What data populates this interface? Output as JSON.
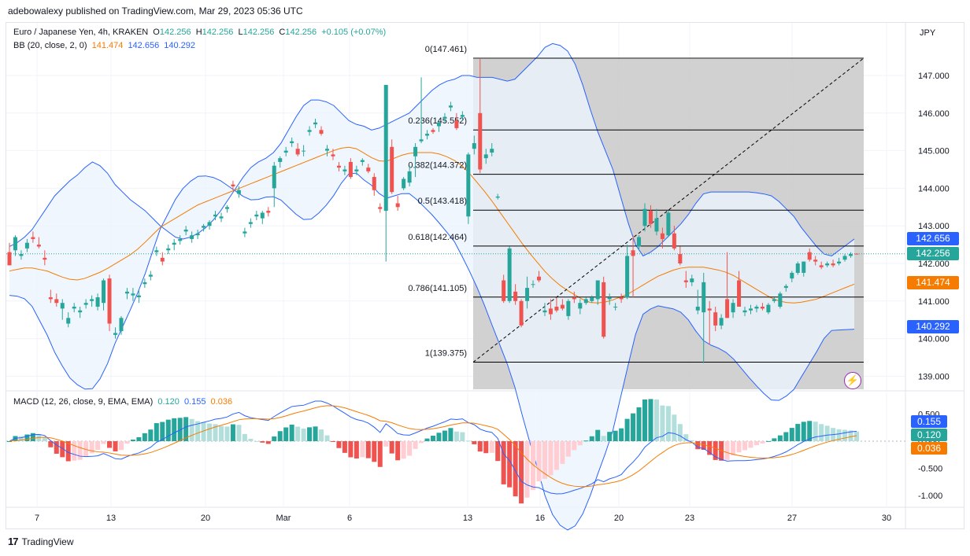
{
  "header": {
    "publisher": "adebowalexy published on TradingView.com, Mar 29, 2023 05:36 UTC"
  },
  "legend": {
    "symbol": "Euro / Japanese Yen, 4h, KRAKEN",
    "o_label": "O",
    "o_value": "142.256",
    "h_label": "H",
    "h_value": "142.256",
    "l_label": "L",
    "l_value": "142.256",
    "c_label": "C",
    "c_value": "142.256",
    "change": "+0.105 (+0.07%)",
    "bb_label": "BB (20, close, 2, 0)",
    "bb_basis": "141.474",
    "bb_upper": "142.656",
    "bb_lower": "140.292",
    "macd_label": "MACD (12, 26, close, 9, EMA, EMA)",
    "macd_hist": "0.120",
    "macd_line": "0.155",
    "macd_signal": "0.036"
  },
  "price_labels": {
    "bb_upper": "142.656",
    "last": "142.256",
    "bb_basis": "141.474",
    "bb_lower": "140.292"
  },
  "macd_labels": {
    "macd": "0.155",
    "hist": "0.120",
    "signal": "0.036"
  },
  "footer": {
    "brand": "TradingView"
  },
  "colors": {
    "up": "#26a69a",
    "down": "#ef5350",
    "bb": "#2962ff",
    "basis": "#f57c00",
    "fib_zone": "#c9c9c9",
    "band_fill": "#ecf4fd"
  },
  "chart_data": {
    "type": "candlestick",
    "title": "Euro / Japanese Yen, 4h, KRAKEN",
    "currency": "JPY",
    "price_axis": {
      "min": 139.0,
      "max": 147.5,
      "ticks": [
        "147.000",
        "146.000",
        "145.000",
        "144.000",
        "143.000",
        "142.000",
        "141.000",
        "140.000",
        "139.000"
      ]
    },
    "x_ticks": [
      "7",
      "13",
      "20",
      "Mar",
      "6",
      "13",
      "16",
      "20",
      "23",
      "27",
      "30"
    ],
    "fibonacci": [
      {
        "label": "0(147.461)",
        "price": 147.461
      },
      {
        "label": "0.236(145.552)",
        "price": 145.552
      },
      {
        "label": "0.382(144.372)",
        "price": 144.372
      },
      {
        "label": "0.5(143.418)",
        "price": 143.418
      },
      {
        "label": "0.618(142.464)",
        "price": 142.464
      },
      {
        "label": "0.786(141.105)",
        "price": 141.105
      },
      {
        "label": "1(139.375)",
        "price": 139.375
      }
    ],
    "candles": [
      [
        142.3,
        142.55,
        141.95,
        141.95
      ],
      [
        142.35,
        142.75,
        142.2,
        142.7
      ],
      [
        142.2,
        142.35,
        142.1,
        142.25
      ],
      [
        142.4,
        142.65,
        142.3,
        142.55
      ],
      [
        142.7,
        142.85,
        142.55,
        142.65
      ],
      [
        142.5,
        142.7,
        142.4,
        142.45
      ],
      [
        142.15,
        142.35,
        141.95,
        142.1
      ],
      [
        141.1,
        141.3,
        140.95,
        141.05
      ],
      [
        141.05,
        141.2,
        140.85,
        140.95
      ],
      [
        140.8,
        141.05,
        140.5,
        140.95
      ],
      [
        140.4,
        140.7,
        140.3,
        140.55
      ],
      [
        140.8,
        140.95,
        140.7,
        140.85
      ],
      [
        140.7,
        140.85,
        140.55,
        140.75
      ],
      [
        140.9,
        141.05,
        140.8,
        140.95
      ],
      [
        141.0,
        141.15,
        140.85,
        141.05
      ],
      [
        140.85,
        141.2,
        140.75,
        141.1
      ],
      [
        140.95,
        141.6,
        140.75,
        141.55
      ],
      [
        141.6,
        141.7,
        140.2,
        140.4
      ],
      [
        140.1,
        140.3,
        140.0,
        140.15
      ],
      [
        140.2,
        140.6,
        140.1,
        140.55
      ],
      [
        141.2,
        141.35,
        141.05,
        141.25
      ],
      [
        141.15,
        141.35,
        141.0,
        141.2
      ],
      [
        141.1,
        141.3,
        140.95,
        141.15
      ],
      [
        141.45,
        141.6,
        141.35,
        141.5
      ],
      [
        141.65,
        141.8,
        141.55,
        141.7
      ],
      [
        142.3,
        142.45,
        142.2,
        142.35
      ],
      [
        142.15,
        142.3,
        141.95,
        142.05
      ],
      [
        142.35,
        142.5,
        142.25,
        142.4
      ],
      [
        142.5,
        142.65,
        142.35,
        142.55
      ],
      [
        142.6,
        142.75,
        142.5,
        142.65
      ],
      [
        142.85,
        143.0,
        142.75,
        142.9
      ],
      [
        142.65,
        142.85,
        142.55,
        142.75
      ],
      [
        142.75,
        142.9,
        142.65,
        142.8
      ],
      [
        142.95,
        143.05,
        142.85,
        143.0
      ],
      [
        143.0,
        143.15,
        142.9,
        143.1
      ],
      [
        143.25,
        143.4,
        143.15,
        143.3
      ],
      [
        143.2,
        143.35,
        143.1,
        143.25
      ],
      [
        143.45,
        143.55,
        143.35,
        143.5
      ],
      [
        144.1,
        144.2,
        143.95,
        144.05
      ],
      [
        143.85,
        144.05,
        143.75,
        143.95
      ],
      [
        142.8,
        142.95,
        142.7,
        142.85
      ],
      [
        143.05,
        143.2,
        142.95,
        143.1
      ],
      [
        143.25,
        143.4,
        143.15,
        143.3
      ],
      [
        143.2,
        143.4,
        143.05,
        143.35
      ],
      [
        143.4,
        143.5,
        143.25,
        143.35
      ],
      [
        144.0,
        144.7,
        143.5,
        144.6
      ],
      [
        144.7,
        144.85,
        144.55,
        144.8
      ],
      [
        144.95,
        145.1,
        144.85,
        145.0
      ],
      [
        145.2,
        145.35,
        145.1,
        145.25
      ],
      [
        145.05,
        145.2,
        144.85,
        144.9
      ],
      [
        145.0,
        145.15,
        144.85,
        145.0
      ],
      [
        145.5,
        145.65,
        145.4,
        145.55
      ],
      [
        145.7,
        145.85,
        145.6,
        145.75
      ],
      [
        145.55,
        145.65,
        145.4,
        145.45
      ],
      [
        145.0,
        145.15,
        144.85,
        145.05
      ],
      [
        144.9,
        145.05,
        144.75,
        144.85
      ],
      [
        144.6,
        144.7,
        144.45,
        144.55
      ],
      [
        144.45,
        144.6,
        144.35,
        144.5
      ],
      [
        144.7,
        144.8,
        144.25,
        144.3
      ],
      [
        144.45,
        144.6,
        144.35,
        144.5
      ],
      [
        144.7,
        144.8,
        144.6,
        144.75
      ],
      [
        144.55,
        144.65,
        144.4,
        144.45
      ],
      [
        144.3,
        144.4,
        143.8,
        143.95
      ],
      [
        143.5,
        143.6,
        143.35,
        143.45
      ],
      [
        143.4,
        146.75,
        142.05,
        146.75
      ],
      [
        145.1,
        145.3,
        143.85,
        143.9
      ],
      [
        143.6,
        143.8,
        143.4,
        143.5
      ],
      [
        144.0,
        144.3,
        143.95,
        144.25
      ],
      [
        144.15,
        144.6,
        144.05,
        144.45
      ],
      [
        144.85,
        145.2,
        144.3,
        145.1
      ],
      [
        145.25,
        146.95,
        145.2,
        145.3
      ],
      [
        145.4,
        145.55,
        145.3,
        145.45
      ],
      [
        145.55,
        145.6,
        145.45,
        145.5
      ],
      [
        145.65,
        145.8,
        145.5,
        145.75
      ],
      [
        145.85,
        146.0,
        145.75,
        145.9
      ],
      [
        146.15,
        146.3,
        146.05,
        146.2
      ],
      [
        145.8,
        146.0,
        145.55,
        145.6
      ],
      [
        145.9,
        146.05,
        145.8,
        145.95
      ],
      [
        143.25,
        144.95,
        143.05,
        144.9
      ],
      [
        145.05,
        145.4,
        144.9,
        145.2
      ],
      [
        146.0,
        147.44,
        144.4,
        144.5
      ],
      [
        144.8,
        145.05,
        144.65,
        144.9
      ],
      [
        144.95,
        145.2,
        144.85,
        145.05
      ],
      [
        143.75,
        143.85,
        143.7,
        143.78
      ],
      [
        141.55,
        141.7,
        140.95,
        141.0
      ],
      [
        141.0,
        142.45,
        140.95,
        142.4
      ],
      [
        141.25,
        141.45,
        140.9,
        141.0
      ],
      [
        141.0,
        141.05,
        140.3,
        140.35
      ],
      [
        141.0,
        141.65,
        140.8,
        141.35
      ],
      [
        141.45,
        141.55,
        141.35,
        141.45
      ],
      [
        141.65,
        141.8,
        141.5,
        141.55
      ],
      [
        140.7,
        140.95,
        140.6,
        140.75
      ],
      [
        140.8,
        141.05,
        140.5,
        140.65
      ],
      [
        140.85,
        141.1,
        140.7,
        140.75
      ],
      [
        140.9,
        141.05,
        140.75,
        140.8
      ],
      [
        140.6,
        141.05,
        140.5,
        141.0
      ],
      [
        141.1,
        141.25,
        140.95,
        141.05
      ],
      [
        140.8,
        141.05,
        140.65,
        140.95
      ],
      [
        140.95,
        141.1,
        140.9,
        141.05
      ],
      [
        141.0,
        141.15,
        140.95,
        141.1
      ],
      [
        141.05,
        141.55,
        140.9,
        141.55
      ],
      [
        141.5,
        141.65,
        140.0,
        140.05
      ],
      [
        141.05,
        141.2,
        140.9,
        141.1
      ],
      [
        140.85,
        140.95,
        140.75,
        140.85
      ],
      [
        141.1,
        141.2,
        140.95,
        141.05
      ],
      [
        141.1,
        142.5,
        141.05,
        142.2
      ],
      [
        142.35,
        142.75,
        141.1,
        142.2
      ],
      [
        142.45,
        142.75,
        142.35,
        142.7
      ],
      [
        143.0,
        143.6,
        142.85,
        143.45
      ],
      [
        143.4,
        143.55,
        142.95,
        143.05
      ],
      [
        142.85,
        143.45,
        142.75,
        143.2
      ],
      [
        142.8,
        142.95,
        142.4,
        142.65
      ],
      [
        142.75,
        143.4,
        142.7,
        143.35
      ],
      [
        142.8,
        143.0,
        142.35,
        142.4
      ],
      [
        142.25,
        142.45,
        141.95,
        142.0
      ],
      [
        141.55,
        141.8,
        141.35,
        141.5
      ],
      [
        141.5,
        141.7,
        141.4,
        141.6
      ],
      [
        140.75,
        141.3,
        140.65,
        140.85
      ],
      [
        140.7,
        141.75,
        139.35,
        141.5
      ],
      [
        140.8,
        141.0,
        139.85,
        140.75
      ],
      [
        140.7,
        140.85,
        140.2,
        140.35
      ],
      [
        140.35,
        140.65,
        140.25,
        140.55
      ],
      [
        141.05,
        142.3,
        140.55,
        140.55
      ],
      [
        140.7,
        141.05,
        140.55,
        140.95
      ],
      [
        141.55,
        141.8,
        140.85,
        140.85
      ],
      [
        140.7,
        140.85,
        140.6,
        140.75
      ],
      [
        140.75,
        140.9,
        140.65,
        140.8
      ],
      [
        140.8,
        140.9,
        140.7,
        140.85
      ],
      [
        140.85,
        140.95,
        140.75,
        140.8
      ],
      [
        140.7,
        140.95,
        140.65,
        140.9
      ],
      [
        141.0,
        141.1,
        140.95,
        141.05
      ],
      [
        140.85,
        141.25,
        140.8,
        141.2
      ],
      [
        141.35,
        141.45,
        141.25,
        141.4
      ],
      [
        141.6,
        141.8,
        141.5,
        141.75
      ],
      [
        141.75,
        142.05,
        141.7,
        142.0
      ],
      [
        141.75,
        142.05,
        141.65,
        142.05
      ],
      [
        142.3,
        142.4,
        142.05,
        142.1
      ],
      [
        142.1,
        142.2,
        141.95,
        142.05
      ],
      [
        141.95,
        142.05,
        141.85,
        141.9
      ],
      [
        141.95,
        142.05,
        141.9,
        142.0
      ],
      [
        142.0,
        142.1,
        141.9,
        141.95
      ],
      [
        142.0,
        142.15,
        141.95,
        142.05
      ],
      [
        142.1,
        142.25,
        142.05,
        142.2
      ],
      [
        142.2,
        142.3,
        142.15,
        142.25
      ],
      [
        142.26,
        142.27,
        142.25,
        142.256
      ]
    ],
    "bollinger": {
      "upper": [
        142.45,
        142.55,
        142.7,
        142.9,
        143.2,
        143.5,
        143.8,
        144.0,
        144.2,
        144.35,
        144.55,
        144.7,
        144.6,
        144.4,
        144.1,
        143.9,
        143.7,
        143.55,
        143.4,
        143.2,
        143.0,
        142.85,
        142.7,
        142.65,
        142.7,
        142.8,
        142.95,
        143.15,
        143.4,
        143.7,
        144.0,
        144.3,
        144.55,
        144.7,
        144.8,
        144.95,
        145.2,
        145.55,
        145.9,
        146.2,
        146.35,
        146.35,
        146.3,
        146.2,
        146.0,
        145.8,
        145.7,
        145.65,
        145.55,
        145.6,
        145.7,
        145.8,
        145.9,
        146.0,
        146.2,
        146.4,
        146.6,
        146.75,
        146.85,
        146.9,
        147.0,
        147.0,
        146.95,
        146.95,
        146.95,
        146.9,
        146.85,
        146.9,
        147.1,
        147.3,
        147.5,
        147.75,
        147.85,
        147.8,
        147.65,
        147.3,
        146.75,
        146.1,
        145.5,
        145.0,
        144.5,
        143.8,
        143.1,
        142.5,
        142.2,
        142.3,
        142.45,
        142.65,
        142.85,
        143.05,
        143.3,
        143.6,
        143.85,
        143.9,
        143.9,
        143.9,
        143.9,
        143.9,
        143.9,
        143.88,
        143.85,
        143.8,
        143.65,
        143.45,
        143.25,
        142.95,
        142.7,
        142.45,
        142.25,
        142.2,
        142.35,
        142.5,
        142.65
      ],
      "basis": [
        141.8,
        141.85,
        141.9,
        141.85,
        141.8,
        141.7,
        141.6,
        141.55,
        141.6,
        141.7,
        141.8,
        141.95,
        142.1,
        142.25,
        142.45,
        142.7,
        142.95,
        143.1,
        143.25,
        143.4,
        143.55,
        143.65,
        143.75,
        143.85,
        143.95,
        144.05,
        144.15,
        144.25,
        144.35,
        144.45,
        144.55,
        144.65,
        144.75,
        144.85,
        144.95,
        145.05,
        145.1,
        145.05,
        144.9,
        144.75,
        144.7,
        144.8,
        144.9,
        144.95,
        144.95,
        144.95,
        144.9,
        144.8,
        144.65,
        144.4,
        144.1,
        143.8,
        143.45,
        143.1,
        142.75,
        142.4,
        142.1,
        141.8,
        141.55,
        141.35,
        141.2,
        141.05,
        140.95,
        140.95,
        141.0,
        141.1,
        141.2,
        141.35,
        141.5,
        141.65,
        141.75,
        141.85,
        141.9,
        141.9,
        141.9,
        141.85,
        141.8,
        141.7,
        141.55,
        141.4,
        141.25,
        141.1,
        141.0,
        140.95,
        140.95,
        141.0,
        141.05,
        141.15,
        141.25,
        141.35,
        141.45
      ]
    },
    "macd": {
      "axis_ticks": [
        "0.500",
        "0.000",
        "-0.500",
        "-1.000"
      ],
      "histogram_color_code": "g=rising positive, G=falling positive, r=falling negative, R=rising negative"
    }
  }
}
